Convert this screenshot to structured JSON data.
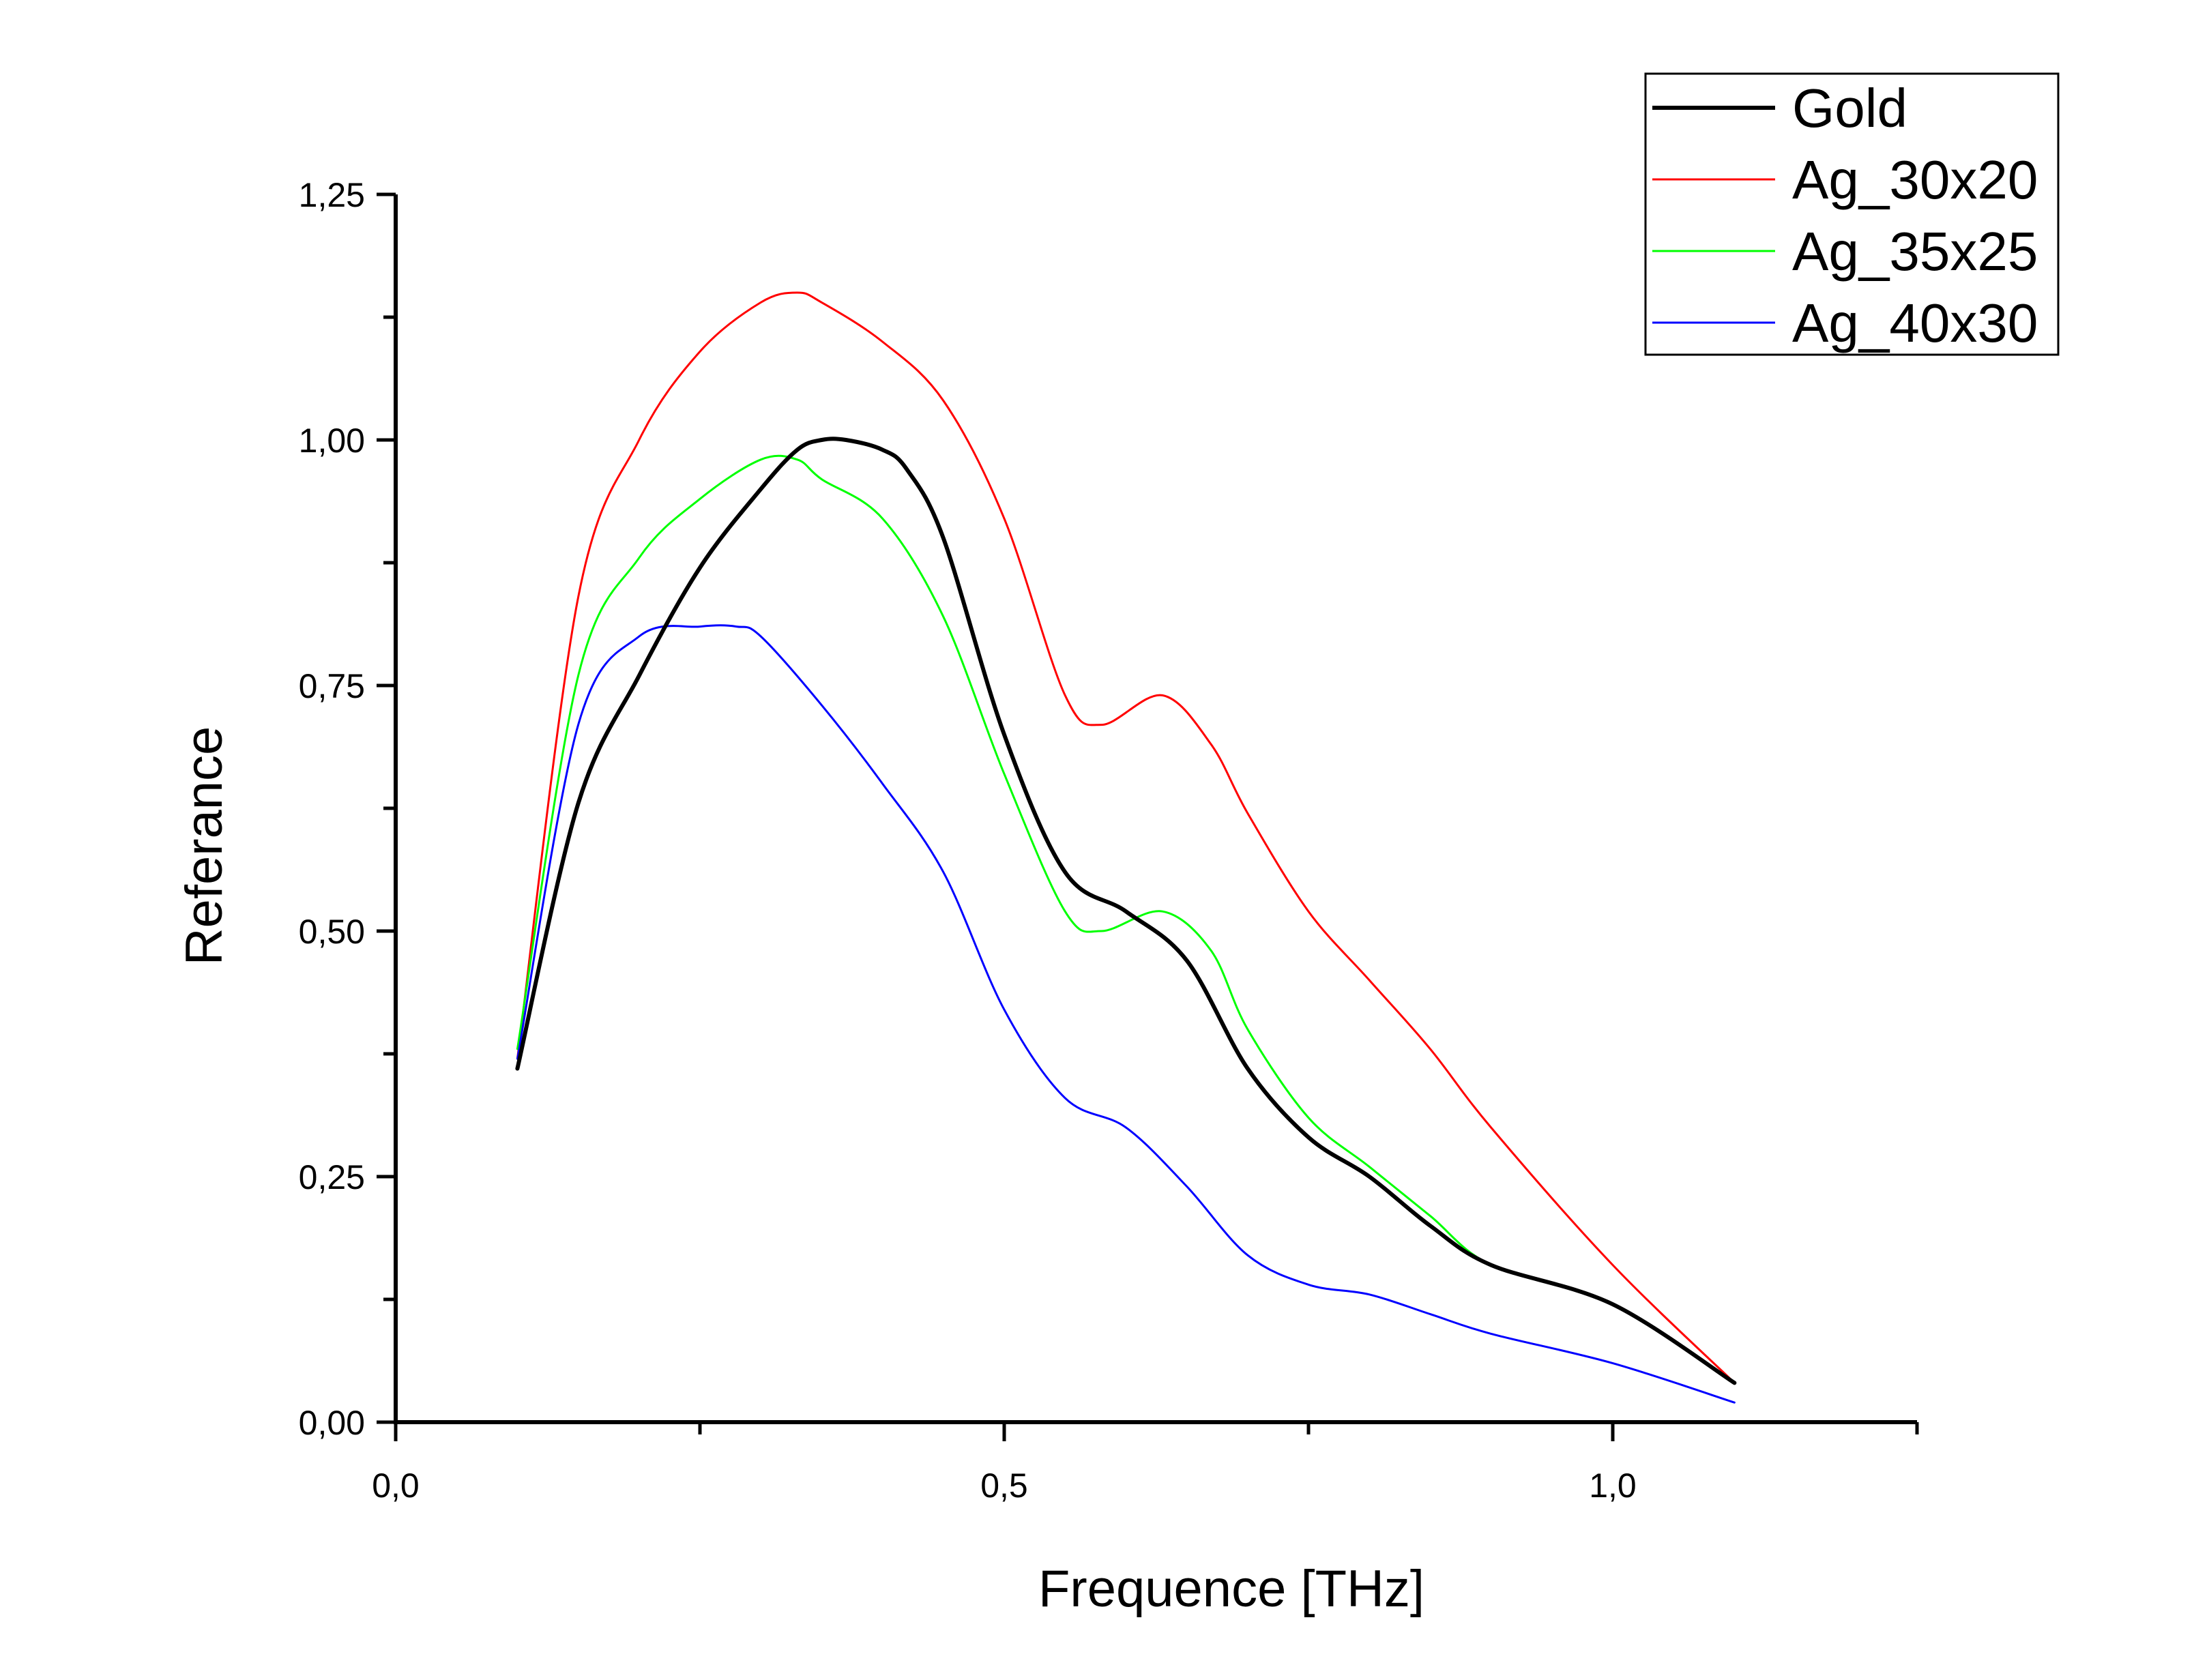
{
  "chart_data": {
    "type": "line",
    "title": "",
    "xlabel": "Frequence [THz]",
    "ylabel": "Referance",
    "xlim": [
      0,
      1.25
    ],
    "ylim": [
      0,
      1.25
    ],
    "xticks": [
      0.0,
      0.5,
      1.0
    ],
    "xtick_labels": [
      "0,0",
      "0,5",
      "1,0"
    ],
    "yticks": [
      0.0,
      0.25,
      0.5,
      0.75,
      1.0,
      1.25
    ],
    "ytick_labels": [
      "0,00",
      "0,25",
      "0,50",
      "0,75",
      "1,00",
      "1,25"
    ],
    "grid": false,
    "legend_position": "top-right",
    "series": [
      {
        "name": "Gold",
        "color": "#000000",
        "x": [
          0.1,
          0.15,
          0.2,
          0.25,
          0.3,
          0.33,
          0.35,
          0.37,
          0.4,
          0.42,
          0.45,
          0.5,
          0.55,
          0.6,
          0.65,
          0.7,
          0.75,
          0.8,
          0.85,
          0.9,
          1.0,
          1.1
        ],
        "y": [
          0.36,
          0.63,
          0.76,
          0.87,
          0.95,
          0.99,
          1.0,
          1.0,
          0.99,
          0.97,
          0.9,
          0.7,
          0.56,
          0.52,
          0.47,
          0.36,
          0.29,
          0.25,
          0.2,
          0.16,
          0.12,
          0.04
        ]
      },
      {
        "name": "Ag_30x20",
        "color": "#ff0000",
        "x": [
          0.1,
          0.15,
          0.2,
          0.25,
          0.3,
          0.33,
          0.35,
          0.4,
          0.45,
          0.5,
          0.55,
          0.58,
          0.63,
          0.67,
          0.7,
          0.75,
          0.8,
          0.85,
          0.9,
          1.0,
          1.1
        ],
        "y": [
          0.37,
          0.84,
          1.0,
          1.09,
          1.14,
          1.15,
          1.14,
          1.1,
          1.04,
          0.92,
          0.74,
          0.71,
          0.74,
          0.69,
          0.62,
          0.52,
          0.45,
          0.38,
          0.3,
          0.16,
          0.04
        ]
      },
      {
        "name": "Ag_35x25",
        "color": "#00ff00",
        "x": [
          0.1,
          0.15,
          0.2,
          0.25,
          0.3,
          0.33,
          0.35,
          0.4,
          0.45,
          0.5,
          0.55,
          0.58,
          0.63,
          0.67,
          0.7,
          0.75,
          0.8,
          0.85,
          0.9,
          1.0,
          1.1
        ],
        "y": [
          0.38,
          0.76,
          0.88,
          0.94,
          0.98,
          0.98,
          0.96,
          0.92,
          0.82,
          0.66,
          0.52,
          0.5,
          0.52,
          0.48,
          0.4,
          0.31,
          0.26,
          0.21,
          0.16,
          0.12,
          0.04
        ]
      },
      {
        "name": "Ag_40x30",
        "color": "#0000ff",
        "x": [
          0.1,
          0.15,
          0.2,
          0.25,
          0.28,
          0.3,
          0.35,
          0.4,
          0.45,
          0.5,
          0.55,
          0.6,
          0.65,
          0.7,
          0.75,
          0.8,
          0.85,
          0.9,
          1.0,
          1.1
        ],
        "y": [
          0.37,
          0.71,
          0.8,
          0.81,
          0.81,
          0.8,
          0.73,
          0.65,
          0.56,
          0.42,
          0.33,
          0.3,
          0.24,
          0.17,
          0.14,
          0.13,
          0.11,
          0.09,
          0.06,
          0.02
        ]
      }
    ]
  }
}
